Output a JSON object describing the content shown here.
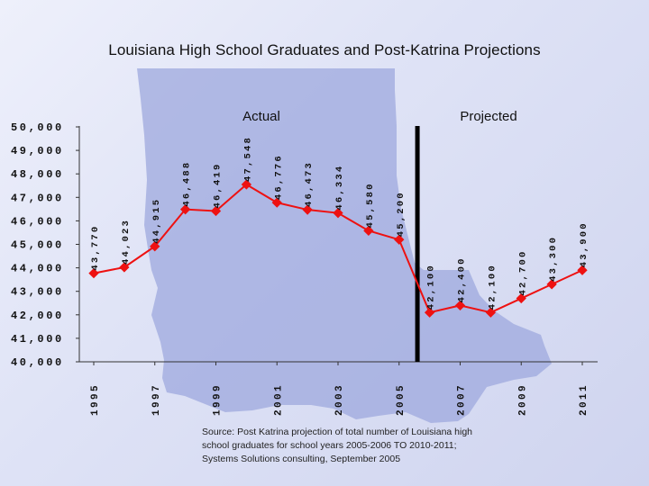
{
  "chart_data": {
    "type": "line",
    "title": "Louisiana High School Graduates and Post-Katrina Projections",
    "xlabel": "",
    "ylabel": "",
    "x": [
      1995,
      1996,
      1997,
      1998,
      1999,
      2000,
      2001,
      2002,
      2003,
      2004,
      2005,
      2006,
      2007,
      2008,
      2009,
      2010,
      2011
    ],
    "xticks": [
      "1995",
      "1997",
      "1999",
      "2001",
      "2003",
      "2005",
      "2007",
      "2009",
      "2011"
    ],
    "ylim": [
      40000,
      50000
    ],
    "yticks": [
      "40,000",
      "41,000",
      "42,000",
      "43,000",
      "44,000",
      "45,000",
      "46,000",
      "47,000",
      "48,000",
      "49,000",
      "50,000"
    ],
    "series": [
      {
        "values": [
          43770,
          44023,
          44915,
          46488,
          46419,
          47548,
          46776,
          46473,
          46334,
          45580,
          45200,
          42100,
          42400,
          42100,
          42700,
          43300,
          43900
        ],
        "labels": [
          "43,770",
          "44,023",
          "44,915",
          "46,488",
          "46,419",
          "47,548",
          "46,776",
          "46,473",
          "46,334",
          "45,580",
          "45,200",
          "42,100",
          "42,400",
          "42,100",
          "42,700",
          "43,300",
          "43,900"
        ],
        "color": "#ee1111"
      }
    ],
    "annotations": {
      "actual": "Actual",
      "projected": "Projected",
      "divider_after_x": 2005.6
    },
    "grid": false,
    "background_shape": "Louisiana state map silhouette",
    "colors": {
      "map": "#9ea8de",
      "line": "#ee1111",
      "divider": "#000000"
    }
  },
  "source": {
    "lines": [
      "Source: Post Katrina projection of total number of Louisiana high",
      "school graduates for school years 2005-2006 TO 2010-2011;",
      "Systems Solutions consulting, September 2005"
    ]
  }
}
